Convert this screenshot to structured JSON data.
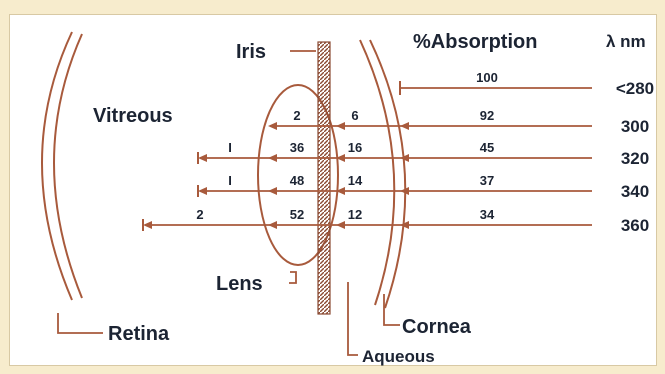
{
  "colors": {
    "structure": "#a85a3c",
    "text": "#1c2433",
    "frame": "#f7eccd",
    "hatch": "#8a4a32"
  },
  "labels": {
    "iris": "Iris",
    "vitreous": "Vitreous",
    "lens": "Lens",
    "retina": "Retina",
    "cornea": "Cornea",
    "aqueous": "Aqueous",
    "absorption_header": "%Absorption",
    "lambda_header": "λ nm"
  },
  "rows": [
    {
      "wavelength": "<280",
      "cornea": "100",
      "aqueous": "",
      "lens": "",
      "vitreous": ""
    },
    {
      "wavelength": "300",
      "cornea": "92",
      "aqueous": "6",
      "lens": "2",
      "vitreous": ""
    },
    {
      "wavelength": "320",
      "cornea": "45",
      "aqueous": "16",
      "lens": "36",
      "vitreous": "I"
    },
    {
      "wavelength": "340",
      "cornea": "37",
      "aqueous": "14",
      "lens": "48",
      "vitreous": "I"
    },
    {
      "wavelength": "360",
      "cornea": "34",
      "aqueous": "12",
      "lens": "52",
      "vitreous": "2"
    }
  ]
}
